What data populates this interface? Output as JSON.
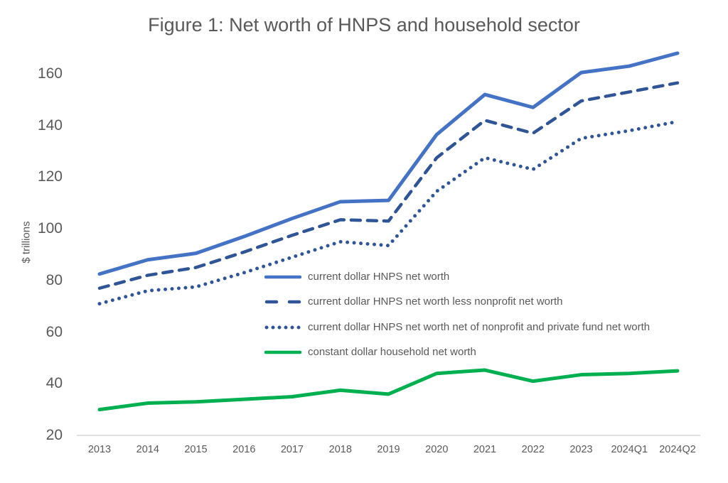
{
  "chart_data": {
    "type": "line",
    "title": "Figure 1: Net worth of HNPS and household sector",
    "xlabel": "",
    "ylabel": "$ trillions",
    "ylim": [
      20,
      170
    ],
    "grid": false,
    "legend_position": "inside-middle-right",
    "yticks": [
      20,
      40,
      60,
      80,
      100,
      120,
      140,
      160
    ],
    "categories": [
      "2013",
      "2014",
      "2015",
      "2016",
      "2017",
      "2018",
      "2019",
      "2020",
      "2021",
      "2022",
      "2023",
      "2024Q1",
      "2024Q2"
    ],
    "series": [
      {
        "name": "current dollar HNPS net worth",
        "style": "solid",
        "color": "#4472C4",
        "values": [
          82.5,
          88,
          90.5,
          97,
          104,
          110.5,
          111,
          136.5,
          152,
          147,
          160.5,
          163,
          168
        ]
      },
      {
        "name": "current dollar HNPS net worth less nonprofit net worth",
        "style": "dashed",
        "color": "#2F5597",
        "values": [
          77,
          82,
          85,
          91,
          97.5,
          103.5,
          103,
          127.5,
          142,
          137,
          149.5,
          153,
          156.5
        ]
      },
      {
        "name": "current dollar HNPS net worth net of nonprofit and private fund net worth",
        "style": "dotted",
        "color": "#2F5597",
        "values": [
          71,
          76,
          77.5,
          83,
          89,
          95,
          93.5,
          114.5,
          127.5,
          123,
          135,
          138,
          141.5
        ]
      },
      {
        "name": "constant dollar household net worth",
        "style": "solid",
        "color": "#00B050",
        "values": [
          30,
          32.5,
          33,
          34,
          35,
          37.5,
          36,
          44,
          45.3,
          41,
          43.5,
          44,
          45
        ]
      }
    ],
    "axis_color": "#D6D6D6",
    "text_color": "#595959"
  }
}
